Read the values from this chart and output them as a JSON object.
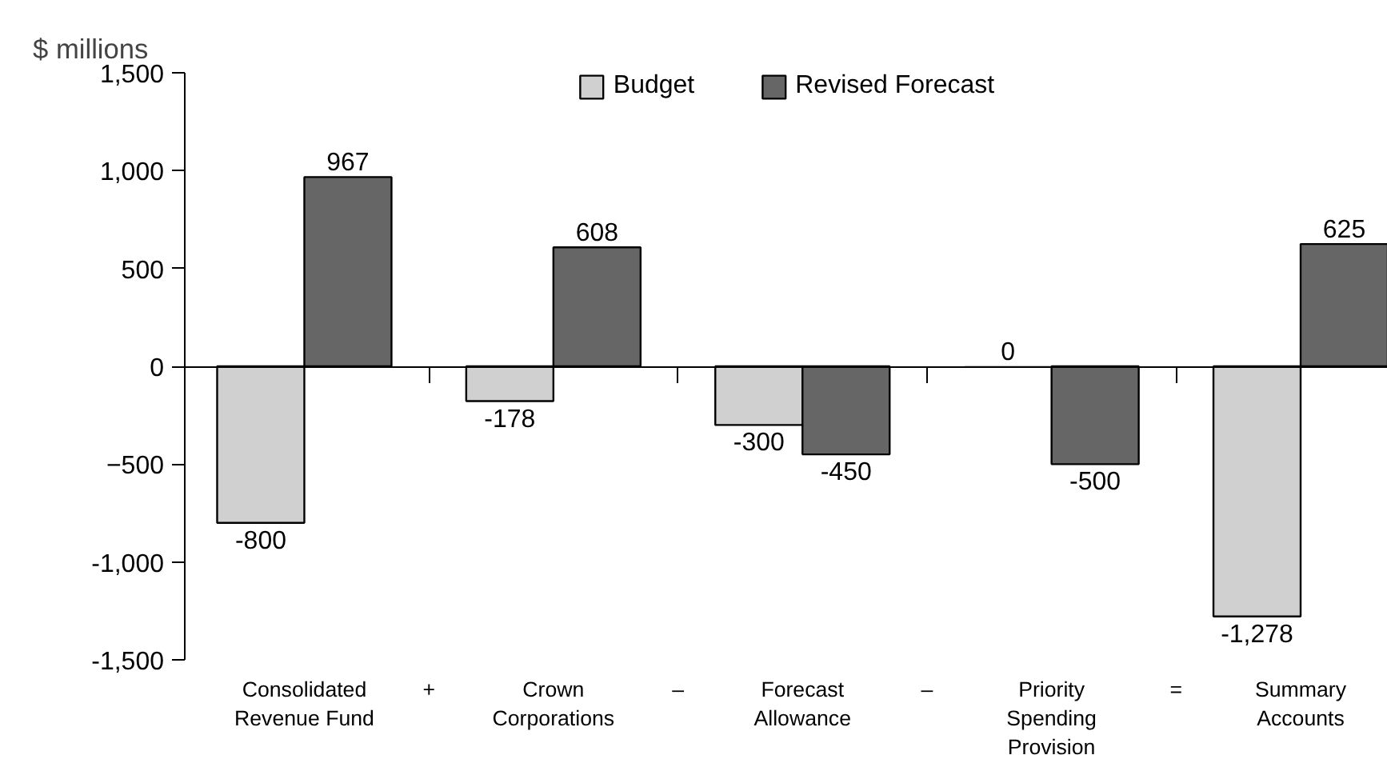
{
  "chart_data": {
    "type": "bar",
    "ylabel": "$ millions",
    "categories": [
      "Consolidated\nRevenue Fund",
      "Crown\nCorporations",
      "Forecast\nAllowance",
      "Priority\nSpending\nProvision",
      "Summary\nAccounts"
    ],
    "series": [
      {
        "name": "Budget",
        "color": "#d0d0d0",
        "values": [
          -800,
          -178,
          -300,
          0,
          -1278
        ],
        "value_labels": [
          "-800",
          "-178",
          "-300",
          "0",
          "-1,278"
        ]
      },
      {
        "name": "Revised Forecast",
        "color": "#666666",
        "values": [
          967,
          608,
          -450,
          -500,
          625
        ],
        "value_labels": [
          "967",
          "608",
          "-450",
          "-500",
          "625"
        ]
      }
    ],
    "annotations": [
      "+",
      "–",
      "–",
      "="
    ],
    "ylim": [
      -1500,
      1500
    ],
    "yticks": [
      {
        "value": -1500,
        "label": "-1,500"
      },
      {
        "value": -1000,
        "label": "-1,000"
      },
      -500,
      0,
      500,
      {
        "value": 1000,
        "label": "1,000"
      },
      {
        "value": 1500,
        "label": "1,500"
      }
    ],
    "legend": "top"
  }
}
